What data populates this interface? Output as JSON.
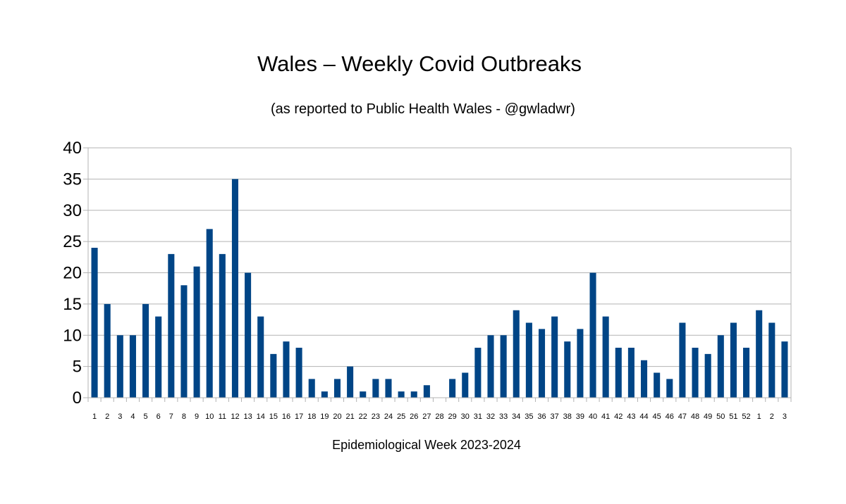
{
  "chart_data": {
    "type": "bar",
    "title": "Wales – Weekly Covid Outbreaks",
    "subtitle": "(as reported to Public Health Wales - @gwladwr)",
    "xlabel": "Epidemiological Week 2023-2024",
    "ylabel": "",
    "ylim": [
      0,
      40
    ],
    "yticks": [
      "0",
      "5",
      "10",
      "15",
      "20",
      "25",
      "30",
      "35",
      "40"
    ],
    "grid": "horizontal",
    "legend": "none",
    "bar_color": "#004586",
    "categories": [
      "1",
      "2",
      "3",
      "4",
      "5",
      "6",
      "7",
      "8",
      "9",
      "10",
      "11",
      "12",
      "13",
      "14",
      "15",
      "16",
      "17",
      "18",
      "19",
      "20",
      "21",
      "22",
      "23",
      "24",
      "25",
      "26",
      "27",
      "28",
      "29",
      "30",
      "31",
      "32",
      "33",
      "34",
      "35",
      "36",
      "37",
      "38",
      "39",
      "40",
      "41",
      "42",
      "43",
      "44",
      "45",
      "46",
      "47",
      "48",
      "49",
      "50",
      "51",
      "52",
      "1",
      "2",
      "3"
    ],
    "values": [
      24,
      15,
      10,
      10,
      15,
      13,
      23,
      18,
      21,
      27,
      23,
      35,
      20,
      13,
      7,
      9,
      8,
      3,
      1,
      3,
      5,
      1,
      3,
      3,
      1,
      1,
      2,
      0,
      3,
      4,
      8,
      10,
      10,
      14,
      12,
      11,
      13,
      9,
      11,
      20,
      13,
      8,
      8,
      6,
      4,
      3,
      12,
      8,
      7,
      10,
      12,
      8,
      14,
      12,
      9
    ]
  }
}
